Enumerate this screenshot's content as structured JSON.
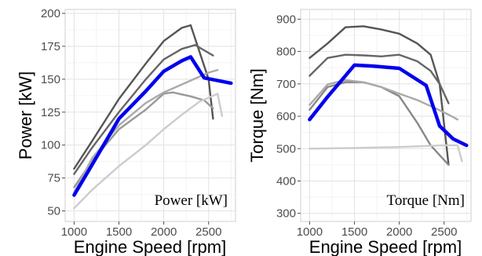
{
  "chart_data": [
    {
      "type": "line",
      "title": "Power [kW]",
      "xlabel": "Engine Speed [rpm]",
      "ylabel": "Power [kW]",
      "xlim": [
        900,
        2800
      ],
      "ylim": [
        42,
        203
      ],
      "xticks": [
        1000,
        1500,
        2000,
        2500
      ],
      "yticks": [
        50,
        75,
        100,
        125,
        150,
        175,
        200
      ],
      "grid": true,
      "series": [
        {
          "color": "#555555",
          "highlight": false,
          "points": [
            [
              1000,
              82
            ],
            [
              1200,
              103
            ],
            [
              1500,
              135
            ],
            [
              1800,
              162
            ],
            [
              2000,
              179
            ],
            [
              2200,
              189
            ],
            [
              2300,
              191
            ],
            [
              2500,
              150
            ],
            [
              2550,
              120
            ]
          ]
        },
        {
          "color": "#666666",
          "highlight": false,
          "points": [
            [
              1000,
              78
            ],
            [
              1200,
              98
            ],
            [
              1500,
              125
            ],
            [
              1800,
              150
            ],
            [
              2000,
              165
            ],
            [
              2200,
              173
            ],
            [
              2350,
              176
            ],
            [
              2450,
              172
            ],
            [
              2550,
              168
            ]
          ]
        },
        {
          "color": "#999999",
          "highlight": false,
          "points": [
            [
              1000,
              68
            ],
            [
              1200,
              88
            ],
            [
              1500,
              112
            ],
            [
              1800,
              127
            ],
            [
              2000,
              139
            ],
            [
              2100,
              140
            ],
            [
              2300,
              137
            ],
            [
              2450,
              134
            ],
            [
              2550,
              128
            ]
          ]
        },
        {
          "color": "#aaaaaa",
          "highlight": false,
          "points": [
            [
              1000,
              64
            ],
            [
              1200,
              90
            ],
            [
              1500,
              115
            ],
            [
              1800,
              132
            ],
            [
              2000,
              140
            ],
            [
              2200,
              146
            ],
            [
              2400,
              152
            ],
            [
              2500,
              155
            ],
            [
              2600,
              157
            ]
          ]
        },
        {
          "color": "#cccccc",
          "highlight": false,
          "points": [
            [
              1000,
              52
            ],
            [
              1200,
              66
            ],
            [
              1500,
              84
            ],
            [
              1800,
              100
            ],
            [
              2000,
              112
            ],
            [
              2200,
              123
            ],
            [
              2400,
              133
            ],
            [
              2600,
              139
            ],
            [
              2650,
              122
            ]
          ]
        },
        {
          "color": "#0000ee",
          "highlight": true,
          "points": [
            [
              1000,
              62
            ],
            [
              1200,
              85
            ],
            [
              1500,
              120
            ],
            [
              1800,
              141
            ],
            [
              2000,
              156
            ],
            [
              2200,
              164
            ],
            [
              2300,
              167
            ],
            [
              2450,
              151
            ],
            [
              2600,
              149
            ],
            [
              2750,
              147
            ]
          ]
        }
      ]
    },
    {
      "type": "line",
      "title": "Torque [Nm]",
      "xlabel": "Engine Speed [rpm]",
      "ylabel": "Torque [Nm]",
      "xlim": [
        900,
        2800
      ],
      "ylim": [
        275,
        930
      ],
      "xticks": [
        1000,
        1500,
        2000,
        2500
      ],
      "yticks": [
        300,
        400,
        500,
        600,
        700,
        800,
        900
      ],
      "grid": true,
      "series": [
        {
          "color": "#555555",
          "highlight": false,
          "points": [
            [
              1000,
              780
            ],
            [
              1200,
              825
            ],
            [
              1400,
              875
            ],
            [
              1600,
              878
            ],
            [
              1800,
              868
            ],
            [
              2000,
              855
            ],
            [
              2200,
              825
            ],
            [
              2350,
              790
            ],
            [
              2450,
              700
            ],
            [
              2550,
              450
            ]
          ]
        },
        {
          "color": "#666666",
          "highlight": false,
          "points": [
            [
              1000,
              725
            ],
            [
              1200,
              780
            ],
            [
              1400,
              790
            ],
            [
              1600,
              788
            ],
            [
              1800,
              785
            ],
            [
              2000,
              790
            ],
            [
              2200,
              770
            ],
            [
              2350,
              740
            ],
            [
              2450,
              700
            ],
            [
              2550,
              640
            ]
          ]
        },
        {
          "color": "#888888",
          "highlight": false,
          "points": [
            [
              1000,
              620
            ],
            [
              1200,
              690
            ],
            [
              1400,
              705
            ],
            [
              1600,
              705
            ],
            [
              1800,
              690
            ],
            [
              2000,
              662
            ],
            [
              2200,
              580
            ],
            [
              2350,
              510
            ],
            [
              2550,
              450
            ]
          ]
        },
        {
          "color": "#aaaaaa",
          "highlight": false,
          "points": [
            [
              1000,
              635
            ],
            [
              1200,
              698
            ],
            [
              1400,
              712
            ],
            [
              1600,
              705
            ],
            [
              1800,
              690
            ],
            [
              2000,
              670
            ],
            [
              2200,
              650
            ],
            [
              2400,
              625
            ],
            [
              2550,
              605
            ],
            [
              2650,
              590
            ]
          ]
        },
        {
          "color": "#cccccc",
          "highlight": false,
          "points": [
            [
              1000,
              500
            ],
            [
              1500,
              502
            ],
            [
              2000,
              505
            ],
            [
              2500,
              510
            ],
            [
              2650,
              510
            ],
            [
              2700,
              460
            ]
          ]
        },
        {
          "color": "#0000ee",
          "highlight": true,
          "points": [
            [
              1000,
              590
            ],
            [
              1200,
              660
            ],
            [
              1500,
              758
            ],
            [
              1700,
              755
            ],
            [
              2000,
              748
            ],
            [
              2300,
              695
            ],
            [
              2450,
              570
            ],
            [
              2600,
              530
            ],
            [
              2750,
              510
            ]
          ]
        }
      ]
    }
  ]
}
